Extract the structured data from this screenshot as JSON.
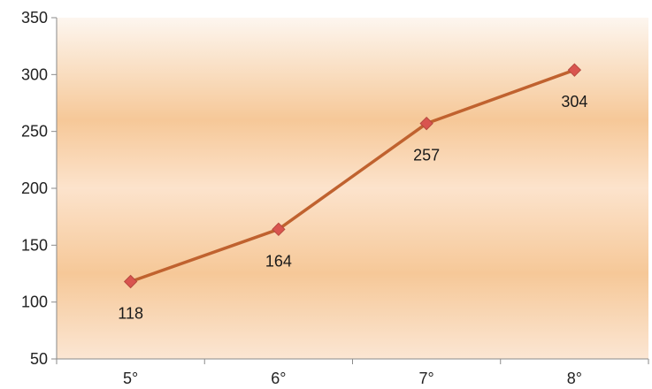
{
  "chart_data": {
    "type": "line",
    "categories": [
      "5°",
      "6°",
      "7°",
      "8°"
    ],
    "series": [
      {
        "values": [
          118,
          164,
          257,
          304
        ]
      }
    ],
    "ylim": [
      50,
      350
    ],
    "yticks": [
      50,
      100,
      150,
      200,
      250,
      300,
      350
    ],
    "data_labels": [
      "118",
      "164",
      "257",
      "304"
    ],
    "grid": false,
    "legend": "none",
    "colors": {
      "line": "#c0622f",
      "marker": "#d9544f",
      "marker_edge": "#b6493f",
      "plot_fill_light": "#fbeee3",
      "plot_fill_dark": "#f6c89c",
      "axis": "#8a8a8a"
    }
  }
}
